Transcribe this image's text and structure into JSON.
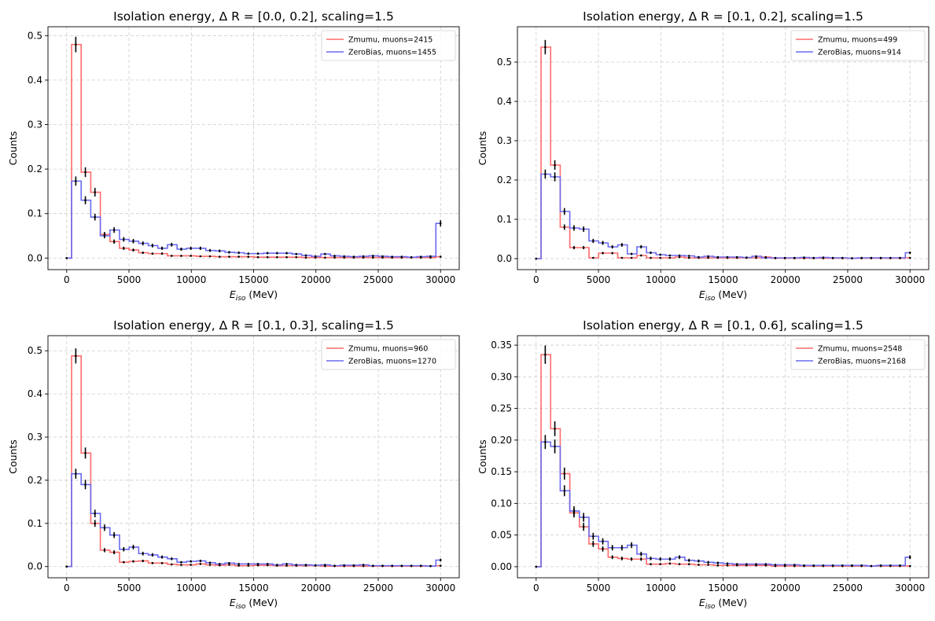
{
  "chart_data": [
    {
      "type": "step",
      "title": "Isolation energy, Δ R = [0.0, 0.2], scaling=1.5",
      "xlabel": "E_iso (MeV)",
      "ylabel": "Counts",
      "xlim": [
        -1500,
        31500
      ],
      "ylim": [
        -0.026,
        0.52
      ],
      "xticks": [
        0,
        5000,
        10000,
        15000,
        20000,
        25000,
        30000
      ],
      "yticks": [
        0.0,
        0.1,
        0.2,
        0.3,
        0.4,
        0.5
      ],
      "ytick_labels": [
        "0.0",
        "0.1",
        "0.2",
        "0.3",
        "0.4",
        "0.5"
      ],
      "grid": true,
      "legend_position": "upper right",
      "series": [
        {
          "name": "Zmumu, muons=2415",
          "color": "#ff6b6b",
          "values": [
            0.0,
            0.48,
            0.193,
            0.148,
            0.053,
            0.037,
            0.022,
            0.018,
            0.012,
            0.01,
            0.01,
            0.005,
            0.005,
            0.005,
            0.004,
            0.004,
            0.003,
            0.003,
            0.003,
            0.003,
            0.002,
            0.002,
            0.002,
            0.002,
            0.002,
            0.001,
            0.001,
            0.001,
            0.001,
            0.001,
            0.001,
            0.001,
            0.001,
            0.001,
            0.001,
            0.001,
            0.001,
            0.001,
            0.001,
            0.003
          ]
        },
        {
          "name": "ZeroBias, muons=1455",
          "color": "#6b6bef",
          "values": [
            0.0,
            0.173,
            0.13,
            0.092,
            0.05,
            0.063,
            0.042,
            0.038,
            0.033,
            0.028,
            0.022,
            0.03,
            0.02,
            0.022,
            0.022,
            0.017,
            0.016,
            0.013,
            0.012,
            0.01,
            0.01,
            0.011,
            0.011,
            0.011,
            0.009,
            0.006,
            0.004,
            0.009,
            0.005,
            0.004,
            0.003,
            0.004,
            0.005,
            0.004,
            0.003,
            0.003,
            0.002,
            0.003,
            0.004,
            0.078
          ]
        }
      ]
    },
    {
      "type": "step",
      "title": "Isolation energy, Δ R = [0.1, 0.2], scaling=1.5",
      "xlabel": "E_iso (MeV)",
      "ylabel": "Counts",
      "xlim": [
        -1500,
        31500
      ],
      "ylim": [
        -0.028,
        0.59
      ],
      "xticks": [
        0,
        5000,
        10000,
        15000,
        20000,
        25000,
        30000
      ],
      "yticks": [
        0.0,
        0.1,
        0.2,
        0.3,
        0.4,
        0.5
      ],
      "ytick_labels": [
        "0.0",
        "0.1",
        "0.2",
        "0.3",
        "0.4",
        "0.5"
      ],
      "grid": true,
      "legend_position": "upper right",
      "series": [
        {
          "name": "Zmumu, muons=499",
          "color": "#ff6b6b",
          "values": [
            0.0,
            0.538,
            0.238,
            0.08,
            0.028,
            0.028,
            0.002,
            0.014,
            0.014,
            0.002,
            0.002,
            0.008,
            0.002,
            0.002,
            0.002,
            0.004,
            0.002,
            0.002,
            0.002,
            0.002,
            0.002,
            0.002,
            0.002,
            0.002,
            0.004,
            0.001,
            0.001,
            0.001,
            0.001,
            0.001,
            0.001,
            0.001,
            0.001,
            0.001,
            0.001,
            0.001,
            0.001,
            0.001,
            0.001,
            0.002
          ]
        },
        {
          "name": "ZeroBias, muons=914",
          "color": "#6b6bef",
          "values": [
            0.0,
            0.215,
            0.208,
            0.12,
            0.078,
            0.075,
            0.045,
            0.04,
            0.03,
            0.035,
            0.012,
            0.03,
            0.015,
            0.01,
            0.008,
            0.008,
            0.007,
            0.004,
            0.006,
            0.004,
            0.004,
            0.004,
            0.003,
            0.006,
            0.002,
            0.002,
            0.002,
            0.002,
            0.003,
            0.002,
            0.003,
            0.002,
            0.002,
            0.001,
            0.002,
            0.002,
            0.002,
            0.002,
            0.002,
            0.015
          ]
        }
      ]
    },
    {
      "type": "step",
      "title": "Isolation energy, Δ R = [0.1, 0.3], scaling=1.5",
      "xlabel": "E_iso (MeV)",
      "ylabel": "Counts",
      "xlim": [
        -1500,
        31500
      ],
      "ylim": [
        -0.026,
        0.535
      ],
      "xticks": [
        0,
        5000,
        10000,
        15000,
        20000,
        25000,
        30000
      ],
      "yticks": [
        0.0,
        0.1,
        0.2,
        0.3,
        0.4,
        0.5
      ],
      "ytick_labels": [
        "0.0",
        "0.1",
        "0.2",
        "0.3",
        "0.4",
        "0.5"
      ],
      "grid": true,
      "legend_position": "upper right",
      "series": [
        {
          "name": "Zmumu, muons=960",
          "color": "#ff6b6b",
          "values": [
            0.0,
            0.488,
            0.263,
            0.1,
            0.038,
            0.033,
            0.01,
            0.012,
            0.013,
            0.008,
            0.008,
            0.005,
            0.004,
            0.004,
            0.006,
            0.004,
            0.003,
            0.004,
            0.002,
            0.002,
            0.003,
            0.003,
            0.002,
            0.002,
            0.002,
            0.002,
            0.002,
            0.001,
            0.001,
            0.001,
            0.001,
            0.001,
            0.001,
            0.001,
            0.001,
            0.001,
            0.001,
            0.001,
            0.001,
            0.002
          ]
        },
        {
          "name": "ZeroBias, muons=1270",
          "color": "#6b6bef",
          "values": [
            0.0,
            0.215,
            0.19,
            0.123,
            0.09,
            0.073,
            0.04,
            0.045,
            0.03,
            0.027,
            0.022,
            0.018,
            0.01,
            0.012,
            0.013,
            0.009,
            0.006,
            0.008,
            0.006,
            0.006,
            0.006,
            0.006,
            0.004,
            0.006,
            0.004,
            0.004,
            0.003,
            0.004,
            0.002,
            0.003,
            0.003,
            0.004,
            0.002,
            0.002,
            0.002,
            0.002,
            0.002,
            0.002,
            0.001,
            0.015
          ]
        }
      ]
    },
    {
      "type": "step",
      "title": "Isolation energy, Δ R = [0.1, 0.6], scaling=1.5",
      "xlabel": "E_iso (MeV)",
      "ylabel": "Counts",
      "xlim": [
        -1500,
        31500
      ],
      "ylim": [
        -0.0175,
        0.365
      ],
      "xticks": [
        0,
        5000,
        10000,
        15000,
        20000,
        25000,
        30000
      ],
      "yticks": [
        0.0,
        0.05,
        0.1,
        0.15,
        0.2,
        0.25,
        0.3,
        0.35
      ],
      "ytick_labels": [
        "0.00",
        "0.05",
        "0.10",
        "0.15",
        "0.20",
        "0.25",
        "0.30",
        "0.35"
      ],
      "grid": true,
      "legend_position": "upper right",
      "series": [
        {
          "name": "Zmumu, muons=2548",
          "color": "#ff6b6b",
          "values": [
            0.0,
            0.335,
            0.218,
            0.147,
            0.085,
            0.063,
            0.036,
            0.028,
            0.015,
            0.013,
            0.012,
            0.012,
            0.004,
            0.004,
            0.005,
            0.004,
            0.004,
            0.003,
            0.003,
            0.002,
            0.002,
            0.002,
            0.002,
            0.002,
            0.002,
            0.001,
            0.001,
            0.001,
            0.001,
            0.001,
            0.001,
            0.001,
            0.001,
            0.001,
            0.001,
            0.001,
            0.001,
            0.001,
            0.001,
            0.001
          ]
        },
        {
          "name": "ZeroBias, muons=2168",
          "color": "#6b6bef",
          "values": [
            0.0,
            0.197,
            0.19,
            0.12,
            0.088,
            0.078,
            0.048,
            0.04,
            0.03,
            0.03,
            0.034,
            0.02,
            0.013,
            0.012,
            0.012,
            0.015,
            0.01,
            0.009,
            0.007,
            0.006,
            0.005,
            0.004,
            0.004,
            0.004,
            0.004,
            0.003,
            0.003,
            0.003,
            0.002,
            0.002,
            0.002,
            0.002,
            0.002,
            0.002,
            0.002,
            0.001,
            0.002,
            0.002,
            0.002,
            0.015
          ]
        }
      ]
    }
  ]
}
